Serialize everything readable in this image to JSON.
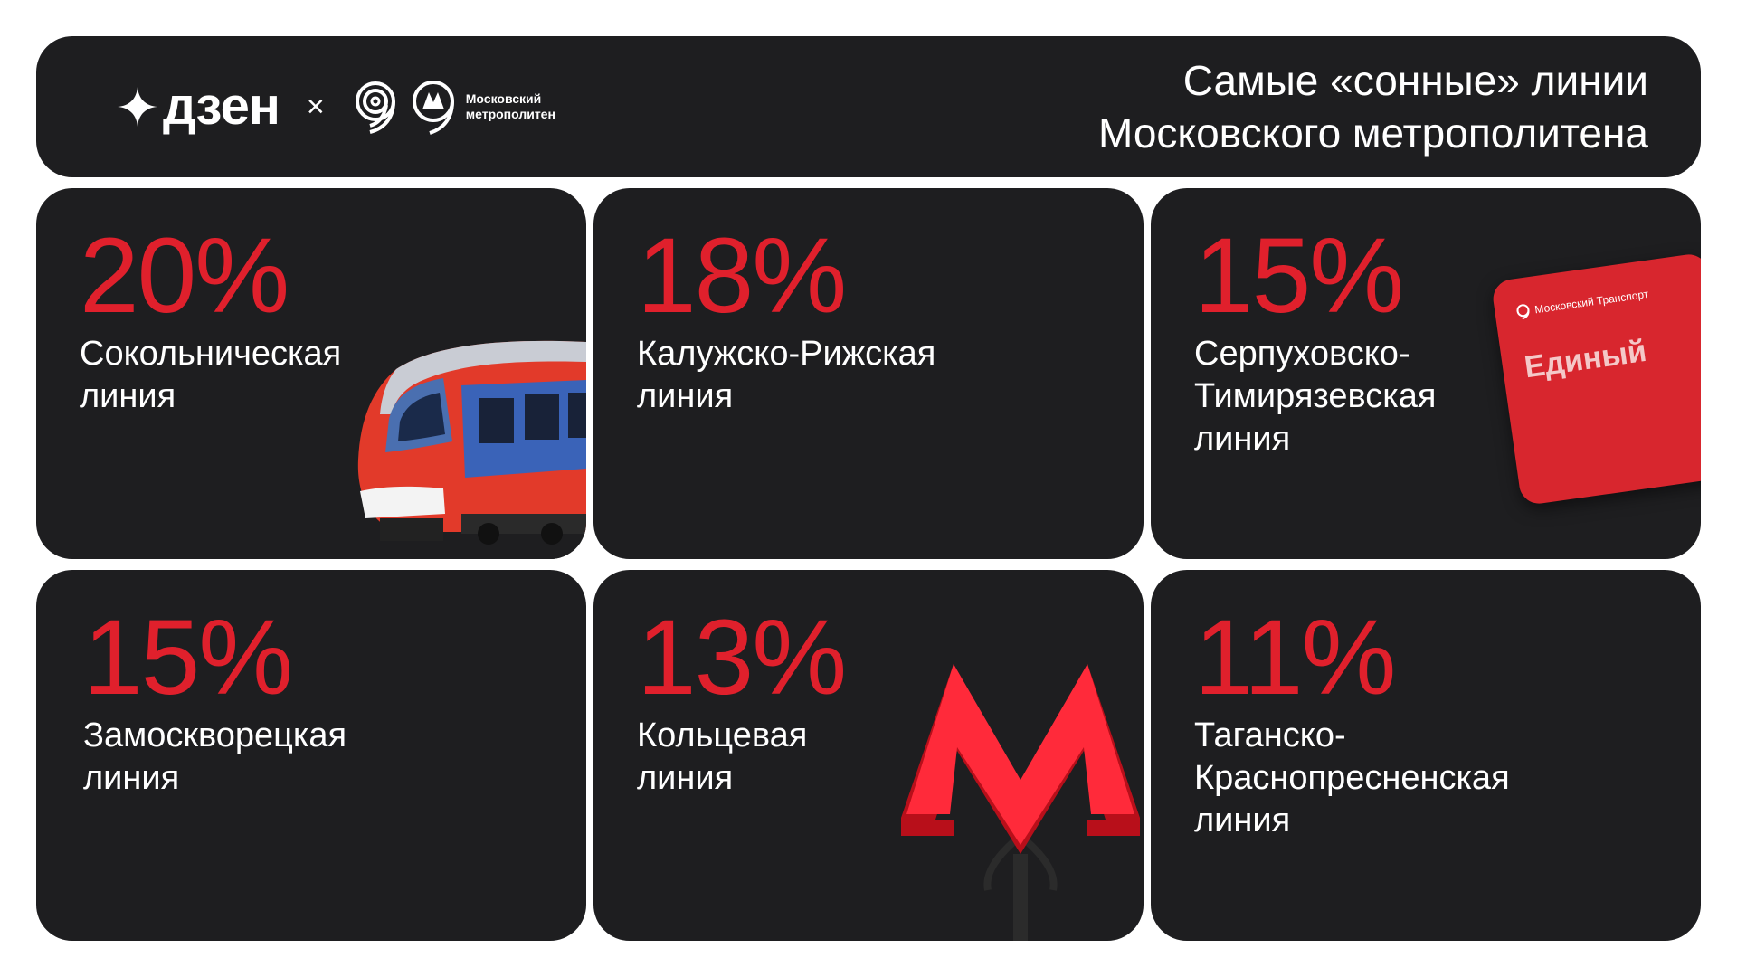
{
  "header": {
    "brand_name": "дзен",
    "separator": "×",
    "metro_name_line1": "Московский",
    "metro_name_line2": "метрополитен",
    "title_line1": "Самые «сонные» линии",
    "title_line2": "Московского метрополитена"
  },
  "cards": [
    {
      "percent": "20%",
      "line1": "Сокольническая",
      "line2": "линия",
      "line3": "",
      "value": 20
    },
    {
      "percent": "18%",
      "line1": "Калужско-Рижская",
      "line2": "линия",
      "line3": "",
      "value": 18
    },
    {
      "percent": "15%",
      "line1": "Серпуховско-",
      "line2": "Тимирязевская",
      "line3": "линия",
      "value": 15
    },
    {
      "percent": "15%",
      "line1": "Замоскворецкая",
      "line2": "линия",
      "line3": "",
      "value": 15
    },
    {
      "percent": "13%",
      "line1": "Кольцевая",
      "line2": "линия",
      "line3": "",
      "value": 13
    },
    {
      "percent": "11%",
      "line1": "Таганско-",
      "line2": "Краснопресненская",
      "line3": "линия",
      "value": 11
    }
  ],
  "troika_card": {
    "brand": "Московский Транспорт",
    "label": "Единый"
  },
  "colors": {
    "accent": "#e0202c",
    "card_bg": "#1e1e20",
    "text": "#ffffff"
  }
}
